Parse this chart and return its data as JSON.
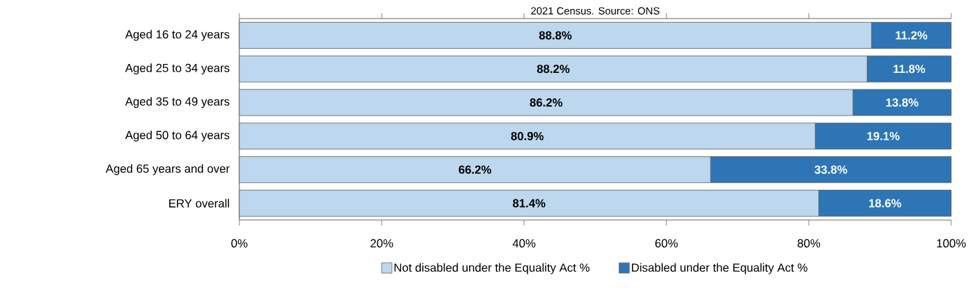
{
  "chart_data": {
    "type": "bar",
    "orientation": "horizontal",
    "stacked": true,
    "title": "2021 Census. Source: ONS",
    "categories": [
      "Aged 16 to 24 years",
      "Aged 25 to 34 years",
      "Aged 35 to 49 years",
      "Aged 50 to 64 years",
      "Aged 65 years and over",
      "ERY overall"
    ],
    "series": [
      {
        "name": "Not disabled under the Equality Act %",
        "color": "#bdd7ee",
        "values": [
          88.8,
          88.2,
          86.2,
          80.9,
          66.2,
          81.4
        ],
        "value_labels": [
          "88.8%",
          "88.2%",
          "86.2%",
          "80.9%",
          "66.2%",
          "81.4%"
        ]
      },
      {
        "name": "Disabled under the Equality Act %",
        "color": "#2e75b6",
        "values": [
          11.2,
          11.8,
          13.8,
          19.1,
          33.8,
          18.6
        ],
        "value_labels": [
          "11.2%",
          "11.8%",
          "13.8%",
          "19.1%",
          "33.8%",
          "18.6%"
        ]
      }
    ],
    "xlim": [
      0,
      100
    ],
    "xticks": [
      {
        "value": 0,
        "label": "0%"
      },
      {
        "value": 20,
        "label": "20%"
      },
      {
        "value": 40,
        "label": "40%"
      },
      {
        "value": 60,
        "label": "60%"
      },
      {
        "value": 80,
        "label": "80%"
      },
      {
        "value": 100,
        "label": "100%"
      }
    ],
    "grid": false,
    "legend": "bottom"
  }
}
